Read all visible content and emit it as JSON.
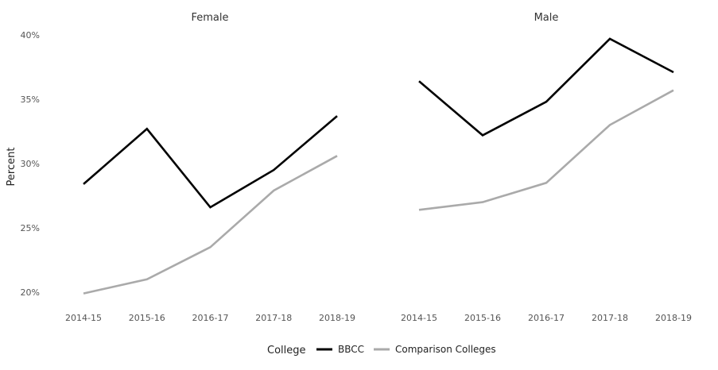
{
  "chart_data": {
    "type": "line",
    "ylabel": "Percent",
    "ylim": [
      20,
      40
    ],
    "yticks": [
      "20%",
      "25%",
      "30%",
      "35%",
      "40%"
    ],
    "ytick_values": [
      20,
      25,
      30,
      35,
      40
    ],
    "grid": false,
    "categories": [
      "2014-15",
      "2015-16",
      "2016-17",
      "2017-18",
      "2018-19"
    ],
    "legend": {
      "title": "College",
      "placement": "bottom",
      "entries": [
        {
          "name": "BBCC",
          "color": "#000000"
        },
        {
          "name": "Comparison Colleges",
          "color": "#aaaaaa"
        }
      ]
    },
    "panels": [
      {
        "title": "Female",
        "series": [
          {
            "name": "BBCC",
            "values": [
              28.4,
              32.7,
              26.6,
              29.5,
              33.7
            ]
          },
          {
            "name": "Comparison Colleges",
            "values": [
              19.9,
              21.0,
              23.5,
              27.9,
              30.6
            ]
          }
        ]
      },
      {
        "title": "Male",
        "series": [
          {
            "name": "BBCC",
            "values": [
              36.4,
              32.2,
              34.8,
              39.7,
              37.1
            ]
          },
          {
            "name": "Comparison Colleges",
            "values": [
              26.4,
              27.0,
              28.5,
              33.0,
              35.7
            ]
          }
        ]
      }
    ]
  }
}
